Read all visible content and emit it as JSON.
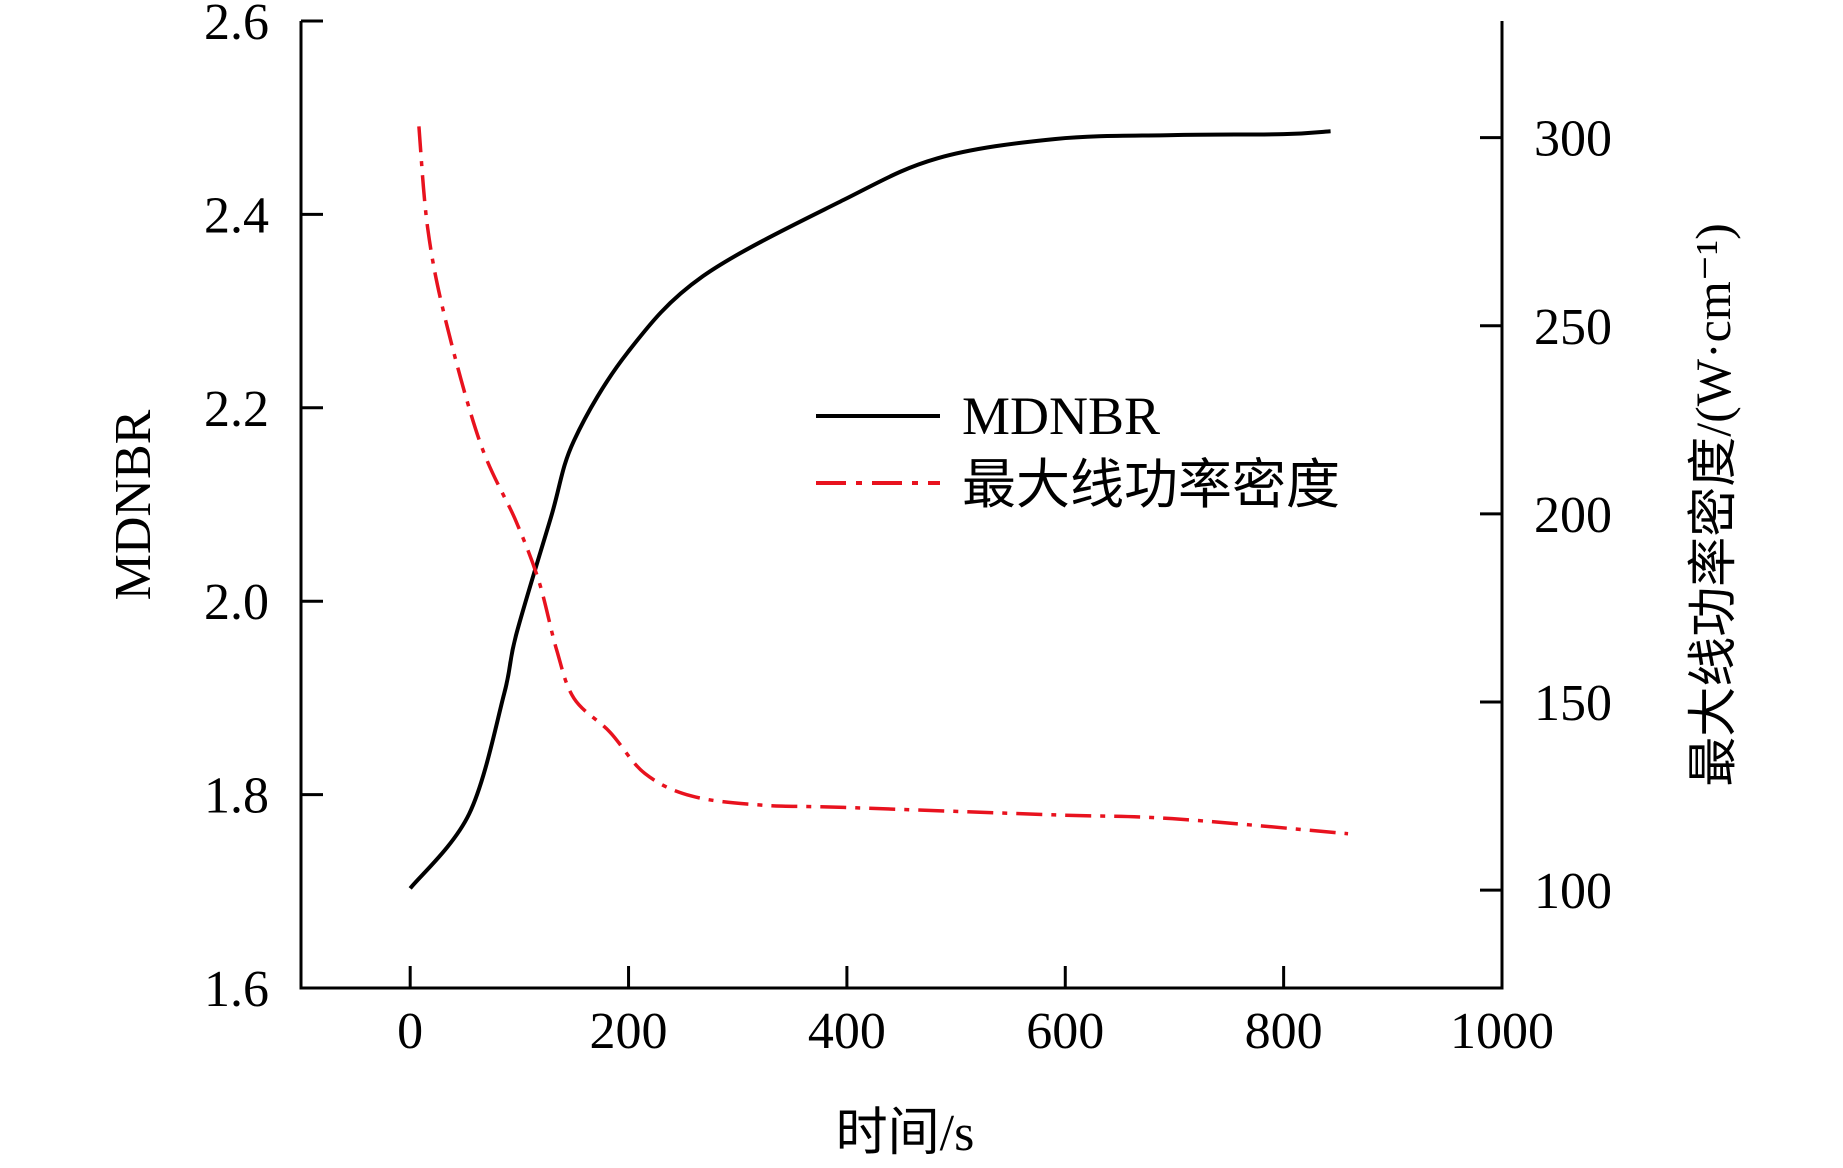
{
  "chart_data": {
    "type": "line",
    "title": "",
    "xlabel": "时间/s",
    "ylabel": "MDNBR",
    "y2label": "最大线功率密度/(W·cm⁻¹)",
    "xlim": [
      -100,
      1000
    ],
    "ylim": [
      1.6,
      2.6
    ],
    "y2lim": [
      74,
      331
    ],
    "xticks": [
      "0",
      "200",
      "400",
      "600",
      "800",
      "1000"
    ],
    "yticks": [
      "1.6",
      "1.8",
      "2.0",
      "2.2",
      "2.4",
      "2.6"
    ],
    "y2ticks": [
      "100",
      "150",
      "200",
      "250",
      "300"
    ],
    "grid": false,
    "legend_position": "center-right",
    "series": [
      {
        "name": "MDNBR",
        "axis": "left",
        "color": "#000000",
        "style": "solid",
        "x": [
          0,
          54,
          86,
          97,
          129,
          150,
          199,
          268,
          397,
          483,
          591,
          698,
          800,
          843
        ],
        "y": [
          1.703,
          1.78,
          1.904,
          1.965,
          2.087,
          2.166,
          2.257,
          2.336,
          2.415,
          2.458,
          2.478,
          2.482,
          2.483,
          2.486
        ]
      },
      {
        "name": "最大线功率密度",
        "axis": "right",
        "color": "#e8121e",
        "style": "dashdot",
        "x": [
          8,
          16,
          32,
          64,
          97,
          118,
          134,
          150,
          183,
          215,
          258,
          322,
          397,
          591,
          698,
          859
        ],
        "y": [
          303,
          276,
          252,
          219,
          198,
          182,
          164,
          151,
          142,
          131,
          125,
          122.6,
          122,
          120,
          119,
          115
        ]
      }
    ]
  }
}
